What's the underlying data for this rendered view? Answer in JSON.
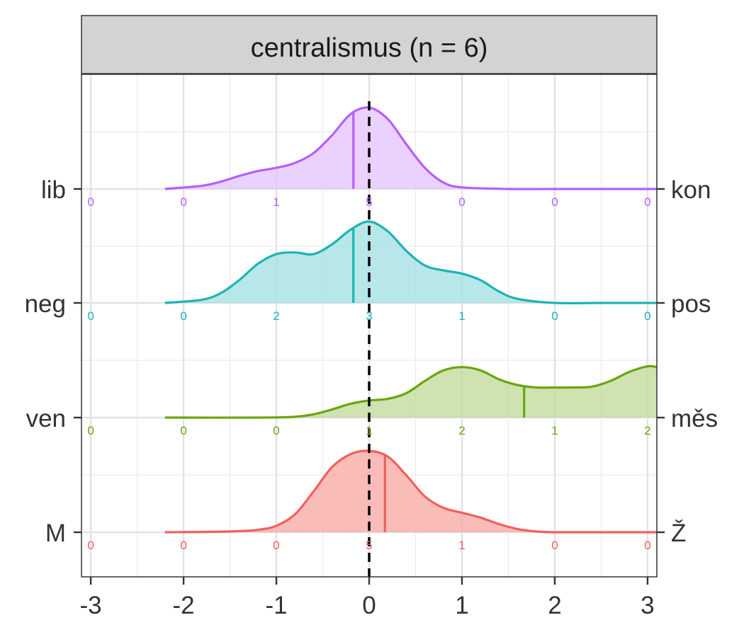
{
  "chart_data": {
    "type": "ridgeline-density",
    "title": "centralismus (n = 6)",
    "xlim": [
      -3.1,
      3.1
    ],
    "x_ticks": [
      -3,
      -2,
      -1,
      0,
      1,
      2,
      3
    ],
    "x_tick_labels": [
      "-3",
      "-2",
      "-1",
      "0",
      "1",
      "2",
      "3"
    ],
    "reference_line_x": 0,
    "grid": true,
    "series": [
      {
        "left_label": "M",
        "right_label": "Ž",
        "color": "#F0605D",
        "fill": "#F8A5A2",
        "mean": 0.17,
        "counts": [
          "0",
          "0",
          "0",
          "5",
          "1",
          "0",
          "0"
        ],
        "density_x": [
          -2.2,
          -1.5,
          -1.2,
          -1.0,
          -0.8,
          -0.6,
          -0.4,
          -0.2,
          0.0,
          0.2,
          0.4,
          0.6,
          0.8,
          1.0,
          1.2,
          1.4,
          1.6,
          1.8,
          2.0,
          2.5,
          3.1
        ],
        "density_y": [
          0.0,
          0.01,
          0.03,
          0.08,
          0.22,
          0.5,
          0.8,
          0.96,
          1.0,
          0.93,
          0.7,
          0.44,
          0.3,
          0.24,
          0.18,
          0.1,
          0.04,
          0.01,
          0.0,
          0.0,
          0.0
        ]
      },
      {
        "left_label": "ven",
        "right_label": "měs",
        "color": "#6AA50E",
        "fill": "#BDD996",
        "mean": 1.67,
        "counts": [
          "0",
          "0",
          "0",
          "1",
          "2",
          "1",
          "2"
        ],
        "density_x": [
          -2.2,
          -1.2,
          -0.8,
          -0.6,
          -0.4,
          -0.2,
          0.0,
          0.2,
          0.4,
          0.6,
          0.8,
          1.0,
          1.2,
          1.4,
          1.6,
          1.8,
          2.0,
          2.2,
          2.4,
          2.6,
          2.8,
          3.0,
          3.1
        ],
        "density_y": [
          0.0,
          0.0,
          0.01,
          0.04,
          0.1,
          0.17,
          0.21,
          0.23,
          0.3,
          0.45,
          0.58,
          0.62,
          0.58,
          0.47,
          0.4,
          0.37,
          0.37,
          0.37,
          0.38,
          0.45,
          0.56,
          0.63,
          0.62
        ]
      },
      {
        "left_label": "neg",
        "right_label": "pos",
        "color": "#1DB3B5",
        "fill": "#9FDFE0",
        "mean": -0.17,
        "counts": [
          "0",
          "0",
          "2",
          "3",
          "1",
          "0",
          "0"
        ],
        "density_x": [
          -2.2,
          -1.8,
          -1.6,
          -1.4,
          -1.2,
          -1.0,
          -0.8,
          -0.6,
          -0.4,
          -0.2,
          0.0,
          0.2,
          0.4,
          0.6,
          0.8,
          1.0,
          1.2,
          1.4,
          1.6,
          2.0,
          2.5,
          3.1
        ],
        "density_y": [
          0.0,
          0.04,
          0.12,
          0.28,
          0.48,
          0.6,
          0.62,
          0.6,
          0.72,
          0.9,
          1.0,
          0.88,
          0.64,
          0.46,
          0.4,
          0.36,
          0.28,
          0.14,
          0.05,
          0.0,
          0.0,
          0.0
        ]
      },
      {
        "left_label": "lib",
        "right_label": "kon",
        "color": "#B65FFB",
        "fill": "#E3C1FD",
        "mean": -0.17,
        "counts": [
          "0",
          "0",
          "1",
          "5",
          "0",
          "0",
          "0"
        ],
        "density_x": [
          -2.2,
          -1.8,
          -1.6,
          -1.4,
          -1.2,
          -1.0,
          -0.8,
          -0.6,
          -0.4,
          -0.2,
          0.0,
          0.2,
          0.4,
          0.6,
          0.8,
          1.0,
          1.5,
          2.0,
          3.1
        ],
        "density_y": [
          0.0,
          0.04,
          0.09,
          0.16,
          0.22,
          0.26,
          0.32,
          0.44,
          0.66,
          0.92,
          1.0,
          0.86,
          0.55,
          0.26,
          0.08,
          0.02,
          0.0,
          0.0,
          0.0
        ]
      }
    ]
  }
}
